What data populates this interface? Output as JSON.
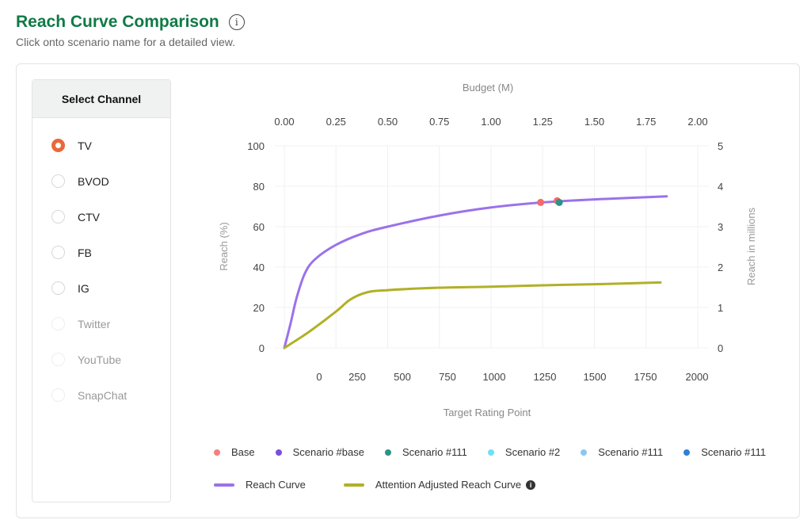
{
  "header": {
    "title": "Reach Curve Comparison",
    "info_icon": "info-icon",
    "subtitle": "Click onto scenario name for a detailed view."
  },
  "channel_panel": {
    "title": "Select Channel",
    "items": [
      {
        "label": "TV",
        "selected": true,
        "disabled": false
      },
      {
        "label": "BVOD",
        "selected": false,
        "disabled": false
      },
      {
        "label": "CTV",
        "selected": false,
        "disabled": false
      },
      {
        "label": "FB",
        "selected": false,
        "disabled": false
      },
      {
        "label": "IG",
        "selected": false,
        "disabled": false
      },
      {
        "label": "Twitter",
        "selected": false,
        "disabled": true
      },
      {
        "label": "YouTube",
        "selected": false,
        "disabled": true
      },
      {
        "label": "SnapChat",
        "selected": false,
        "disabled": true
      }
    ]
  },
  "chart_data": {
    "type": "line",
    "top_axis": {
      "label": "Budget (M)",
      "ticks": [
        "0.00",
        "0.25",
        "0.50",
        "0.75",
        "1.00",
        "1.25",
        "1.50",
        "1.75",
        "2.00"
      ],
      "range": [
        0,
        2
      ]
    },
    "bottom_axis": {
      "label": "Target Rating Point",
      "ticks": [
        "0",
        "250",
        "500",
        "750",
        "1000",
        "1250",
        "1500",
        "1750",
        "2000"
      ]
    },
    "left_axis": {
      "label": "Reach (%)",
      "ticks": [
        "0",
        "20",
        "40",
        "60",
        "80",
        "100"
      ],
      "range": [
        0,
        100
      ]
    },
    "right_axis": {
      "label": "Reach in millions",
      "ticks": [
        "0",
        "1",
        "2",
        "3",
        "4",
        "5"
      ],
      "range": [
        0,
        5
      ]
    },
    "grid": true,
    "series": [
      {
        "name": "Reach Curve",
        "color": "#9b72ea",
        "points": [
          [
            0,
            0
          ],
          [
            0.03,
            12
          ],
          [
            0.06,
            25
          ],
          [
            0.1,
            37
          ],
          [
            0.15,
            44
          ],
          [
            0.25,
            51
          ],
          [
            0.375,
            56.5
          ],
          [
            0.5,
            60
          ],
          [
            0.75,
            65.5
          ],
          [
            1.0,
            69.5
          ],
          [
            1.25,
            72
          ],
          [
            1.5,
            73.5
          ],
          [
            1.85,
            75
          ]
        ]
      },
      {
        "name": "Attention Adjusted Reach Curve",
        "color": "#b1b028",
        "points": [
          [
            0,
            0
          ],
          [
            0.12,
            8
          ],
          [
            0.25,
            18
          ],
          [
            0.32,
            24
          ],
          [
            0.4,
            27.5
          ],
          [
            0.5,
            28.6
          ],
          [
            0.75,
            29.8
          ],
          [
            1.0,
            30.3
          ],
          [
            1.25,
            31
          ],
          [
            1.5,
            31.5
          ],
          [
            1.82,
            32.4
          ]
        ]
      }
    ],
    "points": [
      {
        "name": "Base",
        "color": "#f26b6b",
        "x": 1.24,
        "y": 72
      },
      {
        "name": "Base",
        "color": "#f26b6b",
        "x": 1.32,
        "y": 72.8
      },
      {
        "name": "Scenario #111",
        "color": "#2a9486",
        "x": 1.33,
        "y": 72
      }
    ],
    "legend_points": [
      {
        "name": "Base",
        "color": "#f47f7f"
      },
      {
        "name": "Scenario #base",
        "color": "#7b4fd8"
      },
      {
        "name": "Scenario #111",
        "color": "#2a9486"
      },
      {
        "name": "Scenario #2",
        "color": "#6fe0f5"
      },
      {
        "name": "Scenario #111",
        "color": "#8ac8f3"
      },
      {
        "name": "Scenario #111",
        "color": "#2f7fd6"
      }
    ],
    "legend_lines": [
      {
        "name": "Reach Curve",
        "color": "#9b72ea"
      },
      {
        "name": "Attention Adjusted Reach Curve",
        "color": "#b1b028",
        "info_icon": "info-icon"
      }
    ]
  }
}
